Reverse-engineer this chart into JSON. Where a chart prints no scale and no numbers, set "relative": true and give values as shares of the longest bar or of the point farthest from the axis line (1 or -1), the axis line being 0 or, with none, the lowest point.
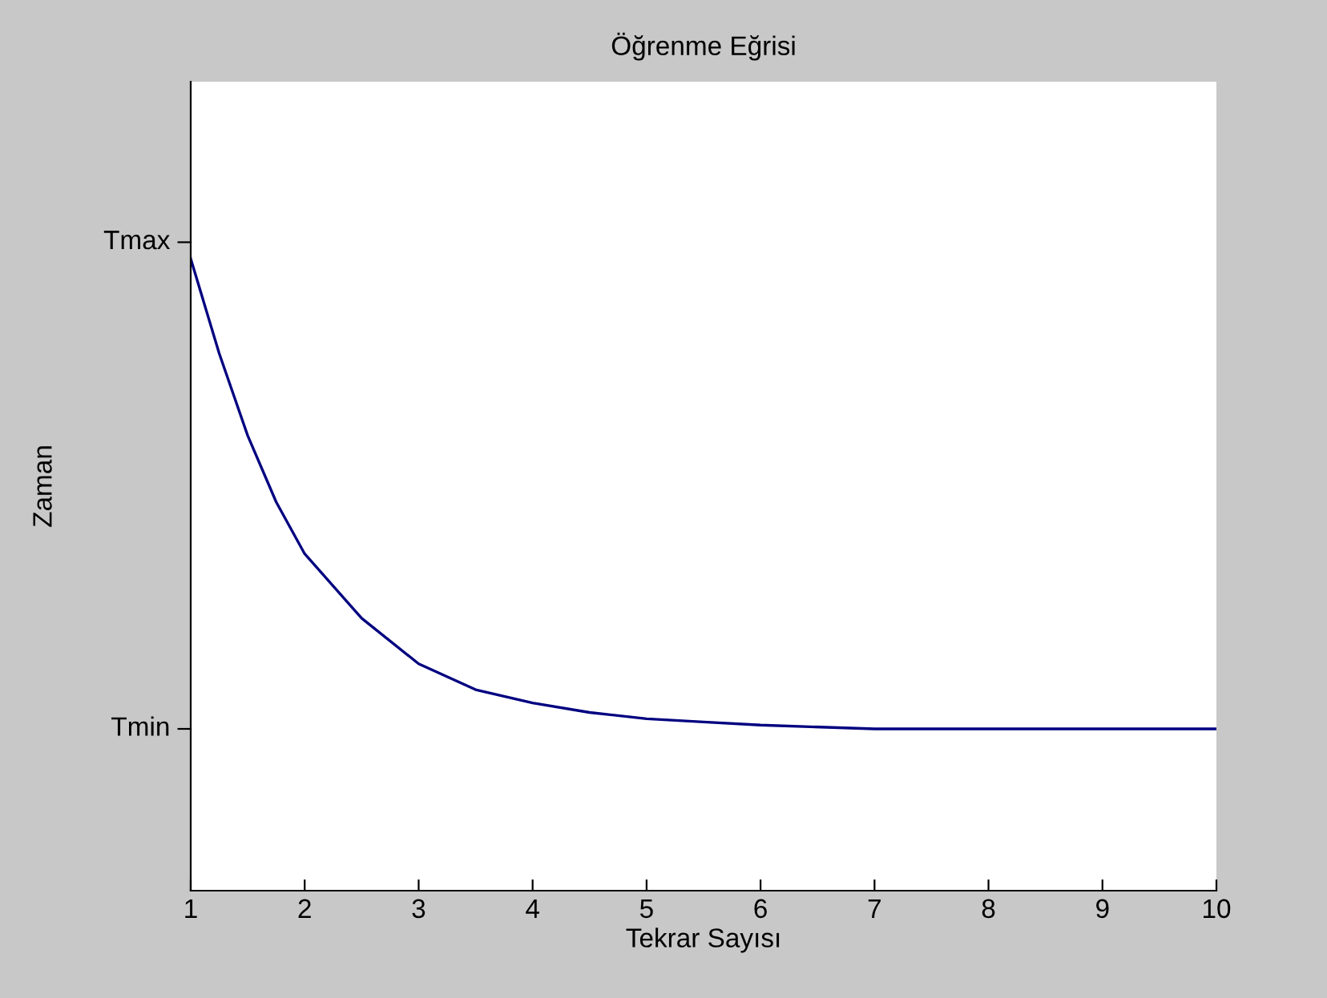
{
  "chart_data": {
    "type": "line",
    "title": "Öğrenme Eğrisi",
    "xlabel": "Tekrar Sayısı",
    "ylabel": "Zaman",
    "relative": true,
    "series": [
      {
        "color": "#000080",
        "x": [
          1,
          1.25,
          1.5,
          1.75,
          2,
          2.5,
          3,
          3.5,
          4,
          4.5,
          5,
          5.5,
          6,
          7,
          8,
          9,
          10
        ],
        "values": [
          1,
          0.85,
          0.72,
          0.615,
          0.533,
          0.431,
          0.359,
          0.318,
          0.297,
          0.282,
          0.272,
          0.267,
          0.262,
          0.256,
          0.256,
          0.256,
          0.256
        ]
      }
    ],
    "xlim": [
      1,
      10
    ],
    "xticks": [
      1,
      2,
      3,
      4,
      5,
      6,
      7,
      8,
      9,
      10
    ],
    "ref_lines": [
      {
        "axis": "y",
        "value": 0.256,
        "label": "Tmin"
      },
      {
        "axis": "y",
        "value": 1.026,
        "label": "Tmax"
      }
    ],
    "grid": false,
    "legend": false,
    "marker": "none",
    "line_style": "solid"
  }
}
